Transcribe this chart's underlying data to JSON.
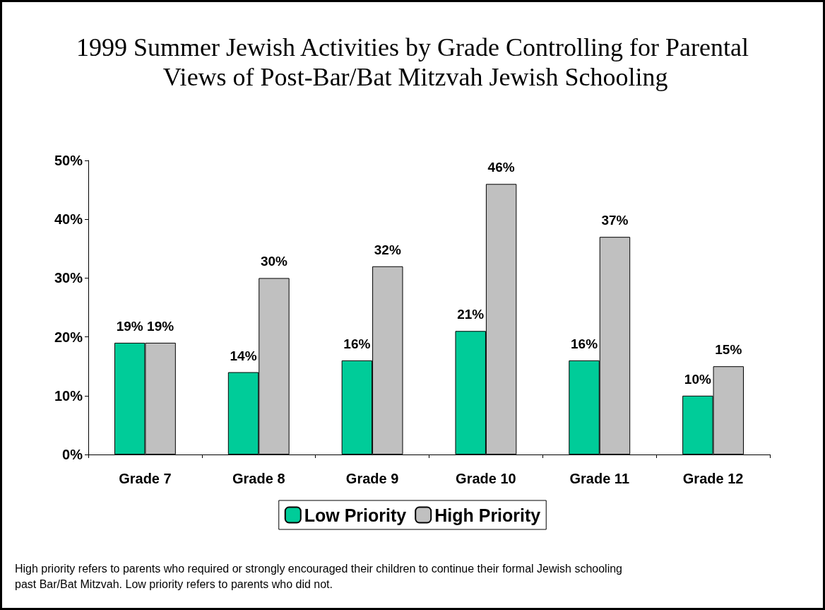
{
  "chart_data": {
    "type": "bar",
    "title": "1999 Summer Jewish Activities by Grade Controlling for Parental Views of Post-Bar/Bat Mitzvah Jewish Schooling",
    "categories": [
      "Grade 7",
      "Grade 8",
      "Grade 9",
      "Grade 10",
      "Grade 11",
      "Grade 12"
    ],
    "series": [
      {
        "name": "Low Priority",
        "color": "#00cc99",
        "values": [
          19,
          14,
          16,
          21,
          16,
          10
        ],
        "value_labels": [
          "19%",
          "14%",
          "16%",
          "21%",
          "16%",
          "10%"
        ]
      },
      {
        "name": "High Priority",
        "color": "#c0c0c0",
        "values": [
          19,
          30,
          32,
          46,
          37,
          15
        ],
        "value_labels": [
          "19%",
          "30%",
          "32%",
          "46%",
          "37%",
          "15%"
        ]
      }
    ],
    "ylim": [
      0,
      50
    ],
    "yticks": [
      {
        "value": 0,
        "label": "0%"
      },
      {
        "value": 10,
        "label": "10%"
      },
      {
        "value": 20,
        "label": "20%"
      },
      {
        "value": 30,
        "label": "30%"
      },
      {
        "value": 40,
        "label": "40%"
      },
      {
        "value": 50,
        "label": "50%"
      }
    ],
    "grid": false,
    "legend": "bottom",
    "annotations": [
      "High priority refers to parents who required or strongly encouraged their children to continue their formal Jewish schooling past Bar/Bat Mitzvah. Low priority refers to parents who did not."
    ]
  }
}
